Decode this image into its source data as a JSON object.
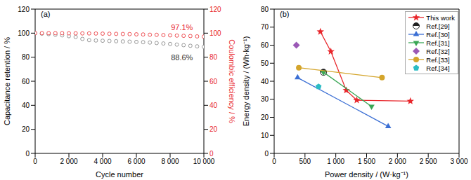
{
  "chart_data": [
    {
      "type": "line",
      "panel": "(a)",
      "x_label": "Cycle number",
      "y_label": "Capacitance retention / %",
      "y2_label": "Coulombic efficiency / %",
      "xlim": [
        0,
        10000
      ],
      "xticks": [
        0,
        {
          "value": 2000,
          "label": "2 000"
        },
        {
          "value": 4000,
          "label": "4 000"
        },
        {
          "value": 6000,
          "label": "6 000"
        },
        {
          "value": 8000,
          "label": "8 000"
        },
        {
          "value": 10000,
          "label": "10 000"
        }
      ],
      "ylim": [
        0,
        120
      ],
      "yticks": [
        0,
        20,
        40,
        60,
        80,
        100,
        120
      ],
      "y2lim": [
        0,
        120
      ],
      "y2ticks": [
        0,
        20,
        40,
        60,
        80,
        100,
        120
      ],
      "x": [
        0,
        400,
        800,
        1200,
        1600,
        2000,
        2400,
        2800,
        3200,
        3600,
        4000,
        4400,
        4800,
        5200,
        5600,
        6000,
        6400,
        6800,
        7200,
        7600,
        8000,
        8400,
        8800,
        9200,
        9600,
        10000
      ],
      "series": [
        {
          "color": "#7f7f7f",
          "marker": "circle_open",
          "line_style": "none",
          "values": [
            100,
            99.6,
            99.2,
            98.7,
            98.2,
            97.5,
            96.8,
            95.2,
            94.2,
            93.9,
            93.7,
            93.5,
            93.3,
            93.1,
            92.9,
            92.7,
            92.5,
            92.2,
            91.8,
            91.4,
            91.0,
            90.5,
            90.0,
            89.5,
            89.0,
            88.6
          ]
        },
        {
          "color": "#e8262b",
          "marker": "circle_open",
          "line_style": "none",
          "axis": "y2",
          "values": [
            100,
            100,
            100,
            100,
            100,
            99.9,
            99.9,
            99.8,
            99.8,
            99.7,
            99.6,
            99.5,
            99.4,
            99.3,
            99.2,
            99.0,
            98.9,
            98.7,
            98.6,
            98.4,
            98.2,
            98.0,
            97.8,
            97.6,
            97.3,
            97.1
          ]
        }
      ],
      "annotations": [
        {
          "text": "97.1%",
          "x": 8700,
          "y": 105,
          "color": "#e8262b"
        },
        {
          "text": "88.6%",
          "x": 8700,
          "y": 80,
          "color": "#333333"
        }
      ]
    },
    {
      "type": "scatter",
      "panel": "(b)",
      "x_label": "Power density / (W·kg⁻¹)",
      "y_label": "Energy density / (Wh·kg⁻¹)",
      "xlim": [
        0,
        3000
      ],
      "xticks": [
        0,
        500,
        {
          "value": 1000,
          "label": "1 000"
        },
        {
          "value": 1500,
          "label": "1 500"
        },
        {
          "value": 2000,
          "label": "2 000"
        },
        {
          "value": 2500,
          "label": "2 500"
        },
        {
          "value": 3000,
          "label": "3 000"
        }
      ],
      "ylim": [
        0,
        80
      ],
      "yticks": [
        0,
        10,
        20,
        30,
        40,
        50,
        60,
        70,
        80
      ],
      "legend": "upper right",
      "series": [
        {
          "name": "This work",
          "color": "#e8262b",
          "marker": "star",
          "line_style": "solid",
          "x": [
            750,
            920,
            1170,
            1340,
            2210
          ],
          "values": [
            67.5,
            56.5,
            35,
            29.5,
            29
          ]
        },
        {
          "name": "Ref.[29]",
          "color": "#222222",
          "marker": "circle_half",
          "line_style": "none",
          "x": [
            800
          ],
          "values": [
            45
          ]
        },
        {
          "name": "Ref.[30]",
          "color": "#3b6fd4",
          "marker": "triangle",
          "line_style": "solid",
          "x": [
            380,
            1850
          ],
          "values": [
            42,
            15
          ]
        },
        {
          "name": "Ref.[31]",
          "color": "#3aa655",
          "marker": "triangle_down",
          "line_style": "solid",
          "x": [
            800,
            1580
          ],
          "values": [
            45,
            26
          ]
        },
        {
          "name": "Ref.[32]",
          "color": "#9b59b6",
          "marker": "diamond",
          "line_style": "none",
          "x": [
            360
          ],
          "values": [
            60
          ]
        },
        {
          "name": "Ref.[33]",
          "color": "#d4a52c",
          "marker": "circle",
          "line_style": "solid",
          "x": [
            400,
            1750
          ],
          "values": [
            47.5,
            42
          ]
        },
        {
          "name": "Ref.[34]",
          "color": "#2bbcc4",
          "marker": "pentagon",
          "line_style": "none",
          "x": [
            720
          ],
          "values": [
            37
          ]
        }
      ]
    }
  ]
}
